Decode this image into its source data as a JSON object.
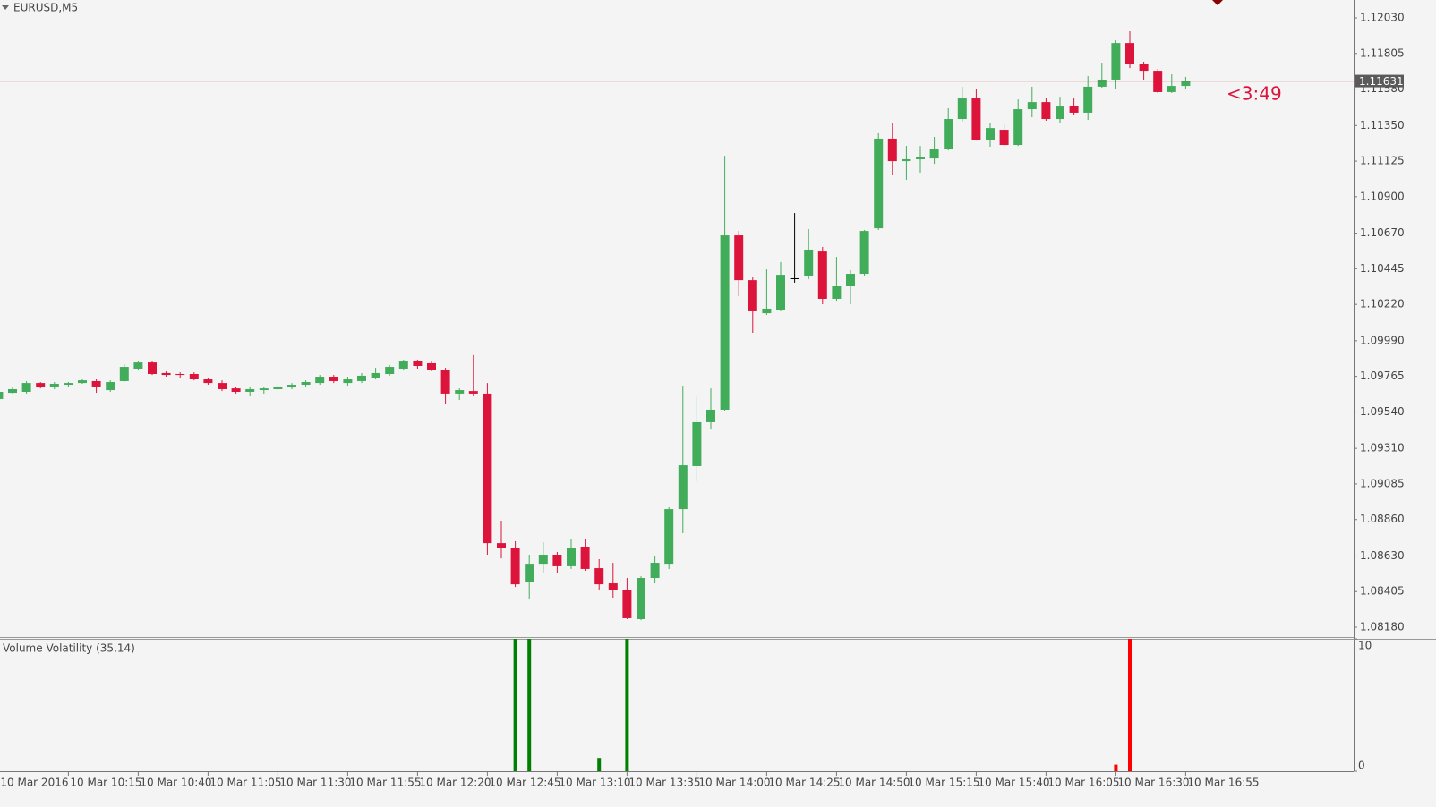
{
  "chart_data": [
    {
      "type": "candlestick",
      "title": "EURUSD,M5",
      "categories": [
        "10 Mar 2016",
        null,
        null,
        null,
        null,
        "10 Mar 10:15",
        null,
        null,
        null,
        null,
        "10 Mar 10:40",
        null,
        null,
        null,
        null,
        "10 Mar 11:05",
        null,
        null,
        null,
        null,
        "10 Mar 11:30",
        null,
        null,
        null,
        null,
        "10 Mar 11:55",
        null,
        null,
        null,
        null,
        "10 Mar 12:20",
        null,
        null,
        null,
        null,
        "10 Mar 12:45",
        null,
        null,
        null,
        null,
        "10 Mar 13:10",
        null,
        null,
        null,
        null,
        "10 Mar 13:35",
        null,
        null,
        null,
        null,
        "10 Mar 14:00",
        null,
        null,
        null,
        null,
        "10 Mar 14:25",
        null,
        null,
        null,
        null,
        "10 Mar 14:50",
        null,
        null,
        null,
        null,
        "10 Mar 15:15",
        null,
        null,
        null,
        null,
        "10 Mar 15:40",
        null,
        null,
        null,
        null,
        "10 Mar 16:05",
        null,
        null,
        null,
        null,
        "10 Mar 16:30",
        null,
        null,
        null,
        null,
        "10 Mar 16:55"
      ],
      "open": [
        1.09622,
        1.09661,
        1.09667,
        1.09723,
        1.09701,
        1.09712,
        1.09723,
        1.09735,
        1.09678,
        1.09735,
        1.09814,
        1.09853,
        1.09786,
        1.0978,
        1.0978,
        1.09746,
        1.09723,
        1.09689,
        1.09667,
        1.09678,
        1.09684,
        1.09695,
        1.09712,
        1.09723,
        1.09763,
        1.09723,
        1.09735,
        1.09757,
        1.0978,
        1.09814,
        1.09865,
        1.09848,
        1.09808,
        1.09656,
        1.09672,
        1.09656,
        1.08711,
        1.08683,
        1.08463,
        1.08581,
        1.08638,
        1.08565,
        1.08689,
        1.08553,
        1.08457,
        1.08412,
        1.08231,
        1.08491,
        1.08581,
        1.08926,
        1.09198,
        1.09475,
        1.09554,
        1.10656,
        1.10373,
        1.10164,
        1.10187,
        1.10385,
        1.10402,
        1.10554,
        1.10255,
        1.10334,
        1.10413,
        1.10701,
        1.11267,
        1.11125,
        1.11137,
        1.11142,
        1.11199,
        1.11391,
        1.11521,
        1.11261,
        1.11323,
        1.11227,
        1.11453,
        1.11498,
        1.11391,
        1.11476,
        1.11431,
        1.11595,
        1.1164,
        1.11871,
        1.11736,
        1.11696,
        1.11561,
        1.116
      ],
      "high": [
        1.09678,
        1.09701,
        1.09735,
        1.09729,
        1.09729,
        1.09729,
        1.09746,
        1.09746,
        1.0974,
        1.09842,
        1.09865,
        1.09859,
        1.09797,
        1.09791,
        1.09791,
        1.09757,
        1.0974,
        1.09701,
        1.09695,
        1.09701,
        1.09712,
        1.09723,
        1.0974,
        1.09774,
        1.09774,
        1.09763,
        1.09786,
        1.09819,
        1.09836,
        1.0987,
        1.0987,
        1.09865,
        1.09819,
        1.09689,
        1.09899,
        1.09723,
        1.08853,
        1.08723,
        1.08638,
        1.08717,
        1.08655,
        1.0874,
        1.0874,
        1.0861,
        1.08587,
        1.08491,
        1.08502,
        1.08632,
        1.08938,
        1.09706,
        1.09639,
        1.09689,
        1.11159,
        1.10684,
        1.1039,
        1.10441,
        1.10487,
        1.10797,
        1.10696,
        1.10583,
        1.1052,
        1.10436,
        1.1069,
        1.11301,
        1.11363,
        1.11221,
        1.11221,
        1.11278,
        1.11459,
        1.11595,
        1.11578,
        1.11368,
        1.11357,
        1.11515,
        1.11595,
        1.11521,
        1.11532,
        1.11521,
        1.11662,
        1.11747,
        1.11888,
        1.11945,
        1.11753,
        1.11708,
        1.11674,
        1.11657
      ],
      "low": [
        1.09616,
        1.09656,
        1.09656,
        1.09689,
        1.09684,
        1.09701,
        1.09718,
        1.09661,
        1.09667,
        1.09729,
        1.09802,
        1.09774,
        1.09763,
        1.09757,
        1.0974,
        1.09712,
        1.09672,
        1.09656,
        1.09639,
        1.09656,
        1.09672,
        1.09684,
        1.09701,
        1.09712,
        1.09723,
        1.09706,
        1.09723,
        1.09746,
        1.09769,
        1.09802,
        1.09814,
        1.09797,
        1.09593,
        1.09616,
        1.09639,
        1.08638,
        1.08615,
        1.08434,
        1.08355,
        1.08525,
        1.08525,
        1.08548,
        1.08536,
        1.08418,
        1.08367,
        1.08231,
        1.08225,
        1.08457,
        1.08548,
        1.08774,
        1.09101,
        1.09429,
        1.09548,
        1.10272,
        1.1004,
        1.10153,
        1.10176,
        1.10357,
        1.10379,
        1.10221,
        1.10243,
        1.10221,
        1.10402,
        1.1069,
        1.11035,
        1.11007,
        1.11052,
        1.11108,
        1.11193,
        1.11374,
        1.11255,
        1.11216,
        1.11216,
        1.11221,
        1.11402,
        1.1138,
        1.11363,
        1.11414,
        1.11385,
        1.11589,
        1.11583,
        1.11713,
        1.1164,
        1.11555,
        1.11555,
        1.11583
      ],
      "close": [
        1.09667,
        1.09684,
        1.09723,
        1.09695,
        1.09718,
        1.09723,
        1.0974,
        1.09701,
        1.09729,
        1.09825,
        1.09853,
        1.0978,
        1.09774,
        1.09774,
        1.09746,
        1.09723,
        1.09684,
        1.09667,
        1.09684,
        1.09689,
        1.09701,
        1.09712,
        1.09729,
        1.09763,
        1.09735,
        1.09746,
        1.09769,
        1.09786,
        1.09825,
        1.09859,
        1.09831,
        1.09808,
        1.09656,
        1.09678,
        1.09656,
        1.08711,
        1.08678,
        1.08451,
        1.08581,
        1.08638,
        1.08565,
        1.08683,
        1.08548,
        1.08451,
        1.08412,
        1.08237,
        1.08491,
        1.08587,
        1.08926,
        1.09203,
        1.09475,
        1.09554,
        1.10656,
        1.10373,
        1.10176,
        1.10193,
        1.10407,
        1.10385,
        1.10566,
        1.10255,
        1.10334,
        1.10413,
        1.10684,
        1.11267,
        1.11125,
        1.11137,
        1.11148,
        1.11199,
        1.11391,
        1.11521,
        1.11261,
        1.11334,
        1.11227,
        1.11453,
        1.11498,
        1.11391,
        1.1147,
        1.11431,
        1.11595,
        1.1164,
        1.11871,
        1.11736,
        1.11696,
        1.11561,
        1.116,
        1.11631
      ],
      "up_color": "#41ad5b",
      "down_color": "#dc143c",
      "doji_color": "#000000",
      "ylim": [
        1.08118,
        1.12143
      ],
      "yticks": [
        {
          "value": 1.1203,
          "label": "1.12030"
        },
        1.11805,
        {
          "value": 1.1158,
          "label": "1.11580"
        },
        {
          "value": 1.1135,
          "label": "1.11350"
        },
        1.11125,
        {
          "value": 1.109,
          "label": "1.10900"
        },
        {
          "value": 1.1067,
          "label": "1.10670"
        },
        1.10445,
        {
          "value": 1.1022,
          "label": "1.10220"
        },
        {
          "value": 1.0999,
          "label": "1.09990"
        },
        1.09765,
        {
          "value": 1.0954,
          "label": "1.09540"
        },
        {
          "value": 1.0931,
          "label": "1.09310"
        },
        1.09085,
        {
          "value": 1.0886,
          "label": "1.08860"
        },
        {
          "value": 1.0863,
          "label": "1.08630"
        },
        1.08405,
        {
          "value": 1.0818,
          "label": "1.08180"
        }
      ],
      "current_price": 1.11631,
      "current_price_color": "#b22222",
      "timer": "<3:49"
    },
    {
      "type": "bar",
      "title": "Volume Volatility (35,14)",
      "series": [
        {
          "color": "#008000",
          "values": [
            0,
            0,
            0,
            0,
            0,
            0,
            0,
            0,
            0,
            0,
            0,
            0,
            0,
            0,
            0,
            0,
            0,
            0,
            0,
            0,
            0,
            0,
            0,
            0,
            0,
            0,
            0,
            0,
            0,
            0,
            0,
            0,
            0,
            0,
            0,
            0,
            0,
            10,
            10,
            0,
            0,
            0,
            0,
            1,
            0,
            10,
            0,
            0,
            0,
            0,
            0,
            0,
            0,
            0,
            0,
            0,
            0,
            0,
            0,
            0,
            0,
            0,
            0,
            0,
            0,
            0,
            0,
            0,
            0,
            0,
            0,
            0,
            0,
            0,
            0,
            0,
            0,
            0,
            0,
            0,
            0,
            0,
            0,
            0,
            0,
            0
          ]
        },
        {
          "color": "#ff0000",
          "values": [
            0,
            0,
            0,
            0,
            0,
            0,
            0,
            0,
            0,
            0,
            0,
            0,
            0,
            0,
            0,
            0,
            0,
            0,
            0,
            0,
            0,
            0,
            0,
            0,
            0,
            0,
            0,
            0,
            0,
            0,
            0,
            0,
            0,
            0,
            0,
            0,
            0,
            0,
            0,
            0,
            0,
            0,
            0,
            0,
            0,
            0,
            0,
            0,
            0,
            0,
            0,
            0,
            0,
            0,
            0,
            0,
            0,
            0,
            0,
            0,
            0,
            0,
            0,
            0,
            0,
            0,
            0,
            0,
            0,
            0,
            0,
            0,
            0,
            0,
            0,
            0,
            0,
            0,
            0,
            0,
            0.5,
            10,
            0,
            0,
            0,
            0
          ]
        }
      ],
      "ylim": [
        0,
        10
      ],
      "yticks": [
        0,
        10
      ]
    }
  ]
}
